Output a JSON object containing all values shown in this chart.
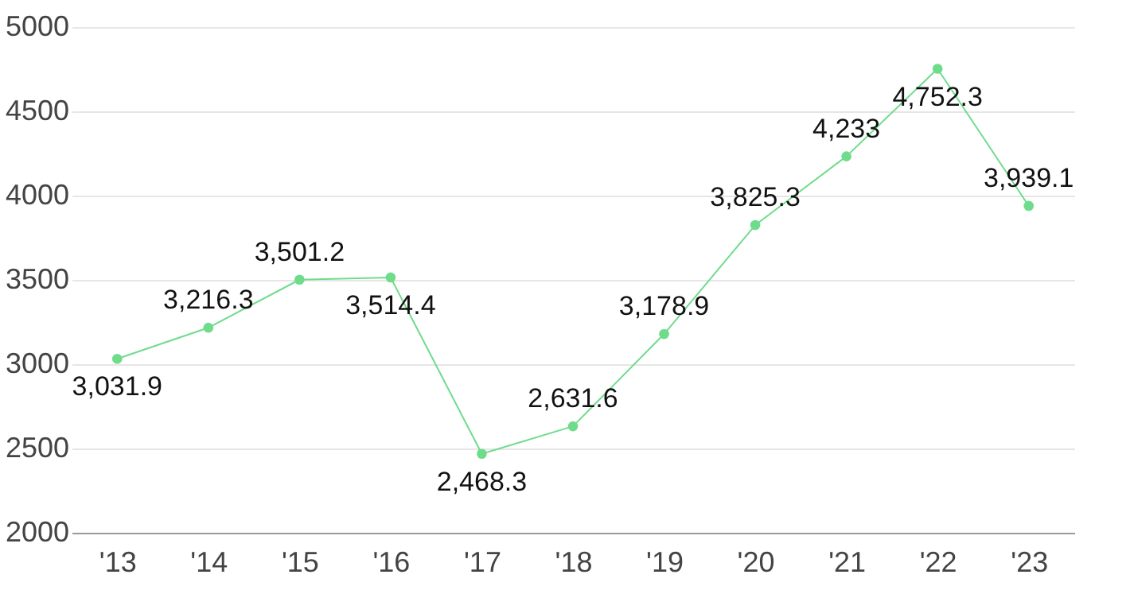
{
  "chart_data": {
    "type": "line",
    "categories": [
      "'13",
      "'14",
      "'15",
      "'16",
      "'17",
      "'18",
      "'19",
      "'20",
      "'21",
      "'22",
      "'23"
    ],
    "series": [
      {
        "color": "#6fdc8c",
        "values": [
          3031.9,
          3216.3,
          3501.2,
          3514.4,
          2468.3,
          2631.6,
          3178.9,
          3825.3,
          4233,
          4752.3,
          3939.1
        ],
        "value_labels": [
          "3,031.9",
          "3,216.3",
          "3,501.2",
          "3,514.4",
          "2,468.3",
          "2,631.6",
          "3,178.9",
          "3,825.3",
          "4,233",
          "4,752.3",
          "3,939.1"
        ]
      }
    ],
    "ylim": [
      2000,
      5000
    ],
    "yticks": [
      2000,
      2500,
      3000,
      3500,
      4000,
      4500,
      5000
    ],
    "grid": "y",
    "marker": "circle",
    "line_style": "solid"
  }
}
